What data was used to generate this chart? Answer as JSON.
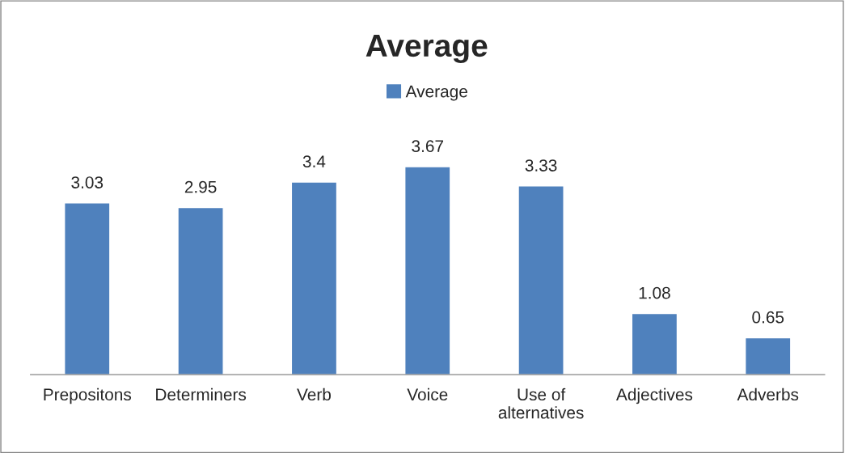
{
  "chart_data": {
    "type": "bar",
    "title": "Average",
    "categories": [
      "Prepositons",
      "Determiners",
      "Verb",
      "Voice",
      "Use of\nalternatives",
      "Adjectives",
      "Adverbs"
    ],
    "series": [
      {
        "name": "Average",
        "color": "#4f81bd",
        "values": [
          3.03,
          2.95,
          3.4,
          3.67,
          3.33,
          1.08,
          0.65
        ]
      }
    ],
    "data_labels": true,
    "legend": "top",
    "grid": false
  }
}
